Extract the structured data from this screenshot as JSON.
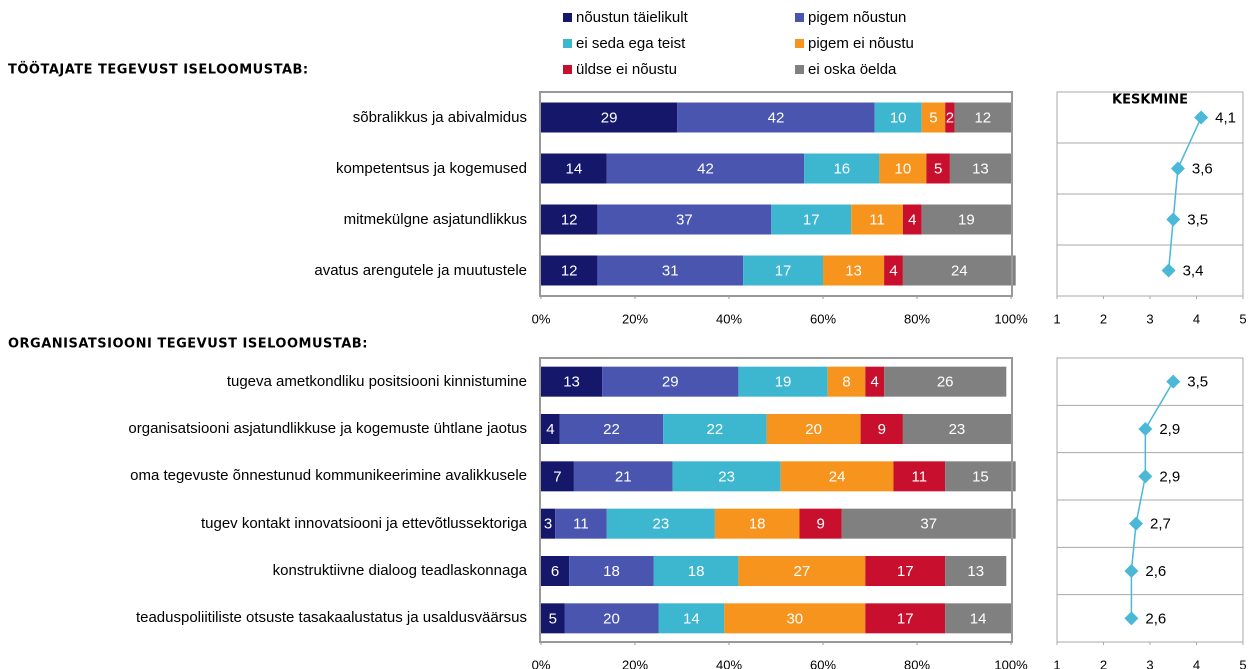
{
  "chart_data": [
    {
      "type": "stacked_barh",
      "title": "TÖÖTAJATE TEGEVUST ISELOOMUSTAB:",
      "categories": [
        "sõbralikkus  ja abivalmidus",
        "kompetentsus  ja kogemused",
        "mitmekülgne  asjatundlikkus",
        "avatus arengutele ja muutustele"
      ],
      "series": [
        {
          "name": "nõustun täielikult",
          "color": "#15176b",
          "values": [
            29,
            14,
            12,
            12
          ]
        },
        {
          "name": "pigem nõustun",
          "color": "#4a55b0",
          "values": [
            42,
            42,
            37,
            31
          ]
        },
        {
          "name": "ei seda ega teist",
          "color": "#3db6d0",
          "values": [
            10,
            16,
            17,
            17
          ]
        },
        {
          "name": "pigem ei nõustu",
          "color": "#f7941d",
          "values": [
            5,
            10,
            11,
            13
          ]
        },
        {
          "name": "üldse ei nõustu",
          "color": "#c8102e",
          "values": [
            2,
            5,
            4,
            4
          ]
        },
        {
          "name": "ei oska öelda",
          "color": "#808080",
          "values": [
            12,
            13,
            19,
            24
          ]
        }
      ],
      "xlim": [
        0,
        100
      ],
      "xticks": [
        {
          "value": 0,
          "label": "0%"
        },
        {
          "value": 20,
          "label": "20%"
        },
        {
          "value": 40,
          "label": "40%"
        },
        {
          "value": 60,
          "label": "60%"
        },
        {
          "value": 80,
          "label": "80%"
        },
        {
          "value": 100,
          "label": "100%"
        }
      ]
    },
    {
      "type": "line",
      "title": "KESKMINE",
      "color": "#4bb8d8",
      "values": [
        4.1,
        3.6,
        3.5,
        3.4
      ],
      "value_labels": [
        "4,1",
        "3,6",
        "3,5",
        "3,4"
      ],
      "xlim": [
        1,
        5
      ],
      "xticks": [
        1,
        2,
        3,
        4,
        5
      ]
    },
    {
      "type": "stacked_barh",
      "title": "ORGANISATSIOONI TEGEVUST ISELOOMUSTAB:",
      "categories": [
        "tugeva ametkondliku  positsiooni kinnistumine",
        "organisatsiooni  asjatundlikkuse  ja kogemuste  ühtlane jaotus",
        "oma  tegevuste õnnestunud kommunikeerimine avalikkusele",
        "tugev kontakt innovatsiooni  ja ettevõtlussektoriga",
        "konstruktiivne  dialoog  teadlaskonnaga",
        "teaduspoliitiliste  otsuste tasakaalustatus ja usaldusväärsus"
      ],
      "series": [
        {
          "color": "#15176b",
          "values": [
            13,
            4,
            7,
            3,
            6,
            5
          ]
        },
        {
          "color": "#4a55b0",
          "values": [
            29,
            22,
            21,
            11,
            18,
            20
          ]
        },
        {
          "color": "#3db6d0",
          "values": [
            19,
            22,
            23,
            23,
            18,
            14
          ]
        },
        {
          "color": "#f7941d",
          "values": [
            8,
            20,
            24,
            18,
            27,
            30
          ]
        },
        {
          "color": "#c8102e",
          "values": [
            4,
            9,
            11,
            9,
            17,
            17
          ]
        },
        {
          "color": "#808080",
          "values": [
            26,
            23,
            15,
            37,
            13,
            14
          ]
        }
      ],
      "xlim": [
        0,
        100
      ],
      "xticks": [
        {
          "value": 0,
          "label": "0%"
        },
        {
          "value": 20,
          "label": "20%"
        },
        {
          "value": 40,
          "label": "40%"
        },
        {
          "value": 60,
          "label": "60%"
        },
        {
          "value": 80,
          "label": "80%"
        },
        {
          "value": 100,
          "label": "100%"
        }
      ]
    },
    {
      "type": "line",
      "color": "#4bb8d8",
      "values": [
        3.5,
        2.9,
        2.9,
        2.7,
        2.6,
        2.6
      ],
      "value_labels": [
        "3,5",
        "2,9",
        "2,9",
        "2,7",
        "2,6",
        "2,6"
      ],
      "xlim": [
        1,
        5
      ],
      "xticks": [
        1,
        2,
        3,
        4,
        5
      ]
    }
  ]
}
